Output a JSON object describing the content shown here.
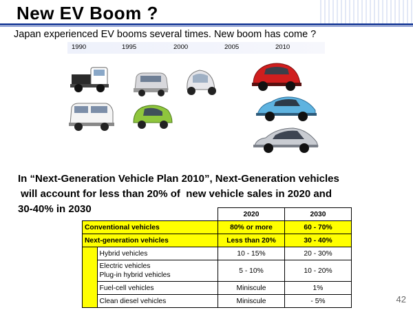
{
  "slide": {
    "title": "New EV Boom ?",
    "subtitle": "Japan experienced EV booms several times. New boom has come ?",
    "years": [
      "1990",
      "1995",
      "2000",
      "2005",
      "2010"
    ],
    "headline_lines": [
      "In “Next-Generation Vehicle Plan 2010”, Next-Generation vehicles",
      " will account for less than 20% of  new vehicle sales in 2020 and",
      "30-40% in 2030"
    ],
    "page_number": "42"
  },
  "table": {
    "header": [
      "",
      "2020",
      "2030"
    ],
    "rows": [
      {
        "label": "Conventional  vehicles",
        "v2020": "80% or more",
        "v2030": "60 - 70%"
      },
      {
        "label": "Next-generation vehicles",
        "v2020": "Less than 20%",
        "v2030": "30 - 40%"
      },
      {
        "label": "Hybrid vehicles",
        "v2020": "10 - 15%",
        "v2030": "20 - 30%"
      },
      {
        "label": "Electric vehicles",
        "label2": "Plug-in hybrid vehicles",
        "v2020": "5 - 10%",
        "v2030": "10 - 20%"
      },
      {
        "label": "Fuel-cell vehicles",
        "v2020": "Miniscule",
        "v2030": "1%"
      },
      {
        "label": "Clean diesel vehicles",
        "v2020": "Miniscule",
        "v2030": "- 5%"
      }
    ]
  },
  "colors": {
    "accent_bar": "#1f3f9a",
    "highlight": "#ffff00"
  },
  "icons": [
    "mini-truck-car-icon",
    "white-van-car-icon",
    "small-hatch-car-icon",
    "green-micro-car-icon",
    "single-seat-ev-icon",
    "red-ev-hatch-icon",
    "blue-ev-hatch-icon",
    "silver-hybrid-car-icon"
  ]
}
